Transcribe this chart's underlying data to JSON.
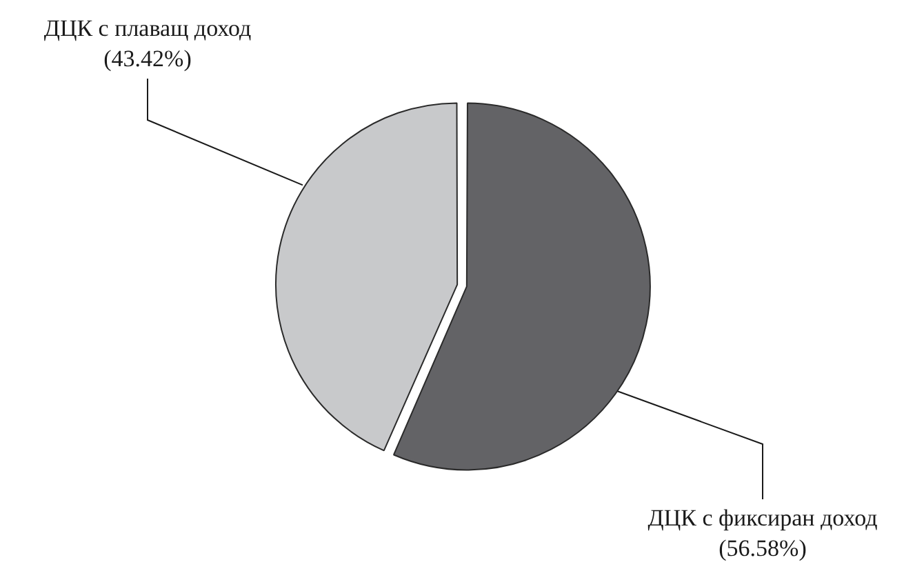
{
  "chart_data": {
    "type": "pie",
    "categories": [
      "ДЦК с плаващ доход",
      "ДЦК с фиксиран доход"
    ],
    "values": [
      43.42,
      56.58
    ],
    "colors": [
      "#c8c9cb",
      "#636366"
    ],
    "value_labels": [
      "(43.42%)",
      "(56.58%)"
    ]
  }
}
